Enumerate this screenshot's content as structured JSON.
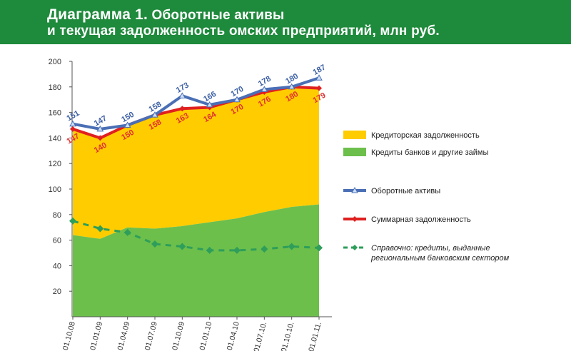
{
  "header": {
    "title_prefix": "Диаграмма 1.",
    "title_line1": "Оборотные активы",
    "title_line2": "и текущая задолженность омских предприятий, млн руб."
  },
  "chart_data": {
    "type": "area",
    "categories": [
      "01.10.08",
      "01.01.09",
      "01.04.09",
      "01.07.09",
      "01.10.09",
      "01.01.10",
      "01.04.10",
      "01.07.10.",
      "01.10.10.",
      "01.01.11."
    ],
    "ylim": [
      0,
      200
    ],
    "yticks": [
      20,
      40,
      60,
      80,
      100,
      120,
      140,
      160,
      180,
      200
    ],
    "grid": false,
    "legend_position": "right",
    "series": [
      {
        "name": "Кредиторская задолженность",
        "kind": "area",
        "color": "#ffcc00",
        "values": [
          83,
          79,
          80,
          89,
          93,
          90,
          93,
          93,
          94,
          91
        ]
      },
      {
        "name": "Кредиты банков и другие займы",
        "kind": "area",
        "color": "#6cbf4b",
        "values": [
          64,
          61,
          70,
          69,
          71,
          74,
          77,
          82,
          86,
          88
        ]
      },
      {
        "name": "Оборотные активы",
        "kind": "line",
        "color": "#4a6fb5",
        "marker": "triangle",
        "values": [
          151,
          147,
          150,
          158,
          173,
          166,
          170,
          178,
          180,
          187
        ],
        "labels": [
          "151",
          "147",
          "150",
          "158",
          "173",
          "166",
          "170",
          "178",
          "180",
          "187"
        ]
      },
      {
        "name": "Суммарная задолженность",
        "kind": "line",
        "color": "#e02020",
        "marker": "diamond",
        "values": [
          147,
          140,
          150,
          158,
          163,
          164,
          170,
          176,
          180,
          179
        ],
        "labels": [
          "147",
          "140",
          "150",
          "158",
          "163",
          "164",
          "170",
          "176",
          "180",
          "179"
        ]
      },
      {
        "name": "Справочно: кредиты, выданные региональным банковским сектором",
        "name_line1": "Справочно: кредиты, выданные",
        "name_line2": "региональным банковским сектором",
        "kind": "dashed-line",
        "color": "#2e9e5a",
        "marker": "diamond",
        "values": [
          75,
          69,
          66,
          57,
          55,
          52,
          52,
          53,
          55,
          54
        ]
      }
    ]
  }
}
